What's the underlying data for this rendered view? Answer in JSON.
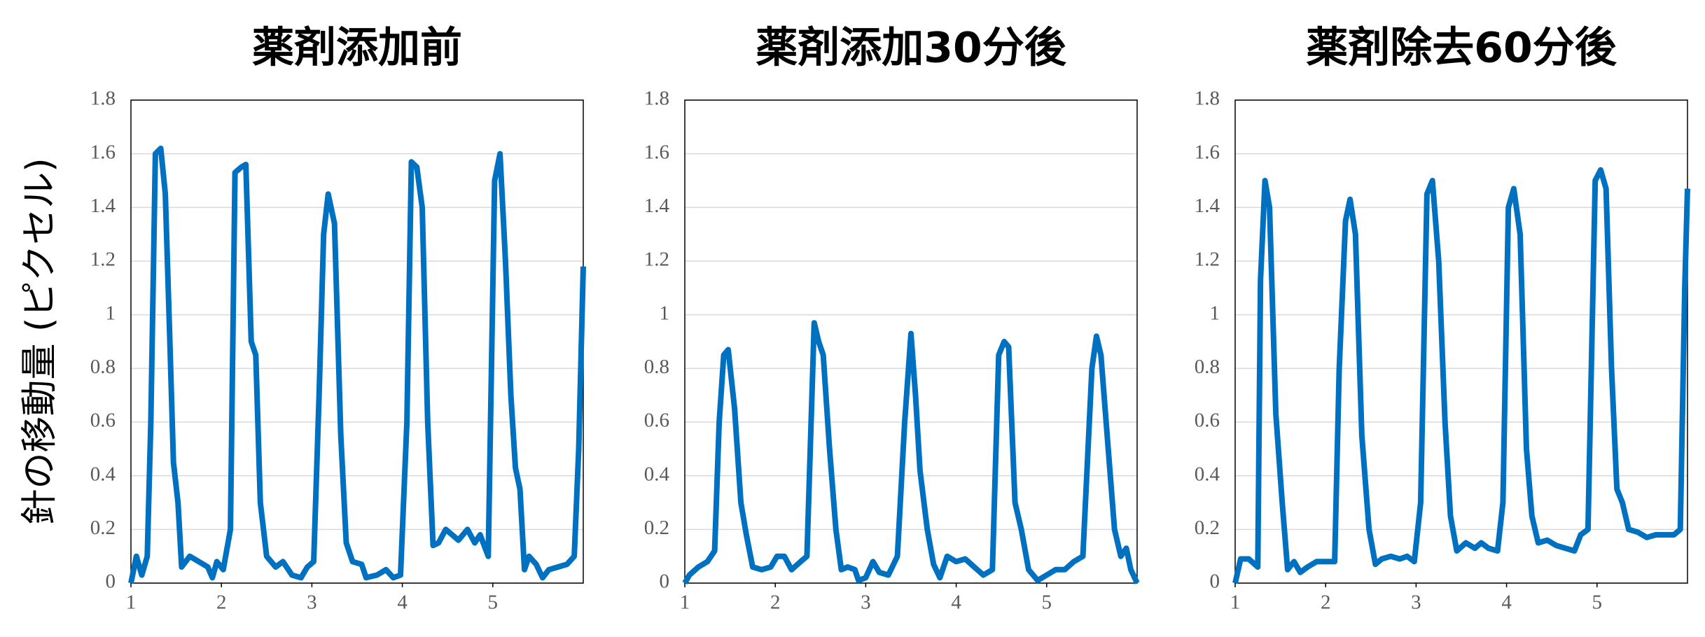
{
  "chart_data": [
    {
      "type": "line",
      "title": "薬剤添加前",
      "ylabel": "針の移動量 (ピクセル)",
      "xlim": [
        1,
        6
      ],
      "xticks": [
        1,
        2,
        3,
        4,
        5
      ],
      "ylim": [
        0,
        1.8
      ],
      "yticks": [
        0,
        0.2,
        0.4,
        0.6,
        0.8,
        1,
        1.2,
        1.4,
        1.6,
        1.8
      ],
      "grid": true,
      "series": [
        {
          "color": "#0070c0",
          "x": [
            1.0,
            1.06,
            1.12,
            1.18,
            1.22,
            1.27,
            1.33,
            1.38,
            1.43,
            1.47,
            1.52,
            1.56,
            1.65,
            1.75,
            1.85,
            1.9,
            1.95,
            2.02,
            2.1,
            2.15,
            2.22,
            2.27,
            2.33,
            2.38,
            2.43,
            2.5,
            2.6,
            2.68,
            2.78,
            2.88,
            2.95,
            3.02,
            3.08,
            3.13,
            3.18,
            3.25,
            3.32,
            3.38,
            3.45,
            3.55,
            3.6,
            3.72,
            3.82,
            3.9,
            3.98,
            4.05,
            4.1,
            4.16,
            4.22,
            4.28,
            4.34,
            4.4,
            4.48,
            4.55,
            4.62,
            4.72,
            4.8,
            4.86,
            4.95,
            5.02,
            5.08,
            5.14,
            5.2,
            5.25,
            5.3,
            5.35,
            5.4,
            5.48,
            5.55,
            5.62,
            5.72,
            5.82,
            5.9,
            5.95,
            6.0
          ],
          "values": [
            0.0,
            0.1,
            0.03,
            0.1,
            0.6,
            1.6,
            1.62,
            1.45,
            0.9,
            0.45,
            0.3,
            0.06,
            0.1,
            0.08,
            0.06,
            0.02,
            0.08,
            0.05,
            0.2,
            1.53,
            1.55,
            1.56,
            0.9,
            0.85,
            0.3,
            0.1,
            0.06,
            0.08,
            0.03,
            0.02,
            0.06,
            0.08,
            0.7,
            1.3,
            1.45,
            1.34,
            0.55,
            0.15,
            0.08,
            0.07,
            0.02,
            0.03,
            0.05,
            0.02,
            0.03,
            0.6,
            1.57,
            1.55,
            1.4,
            0.6,
            0.14,
            0.15,
            0.2,
            0.18,
            0.16,
            0.2,
            0.15,
            0.18,
            0.1,
            1.5,
            1.6,
            1.2,
            0.7,
            0.43,
            0.35,
            0.05,
            0.1,
            0.07,
            0.02,
            0.05,
            0.06,
            0.07,
            0.1,
            0.5,
            1.18
          ]
        }
      ]
    },
    {
      "type": "line",
      "title": "薬剤添加30分後",
      "xlim": [
        1,
        6
      ],
      "xticks": [
        1,
        2,
        3,
        4,
        5
      ],
      "ylim": [
        0,
        1.8
      ],
      "yticks": [
        0,
        0.2,
        0.4,
        0.6,
        0.8,
        1,
        1.2,
        1.4,
        1.6,
        1.8
      ],
      "grid": true,
      "series": [
        {
          "color": "#0070c0",
          "x": [
            1.0,
            1.05,
            1.15,
            1.25,
            1.33,
            1.38,
            1.43,
            1.48,
            1.55,
            1.62,
            1.68,
            1.75,
            1.85,
            1.95,
            2.02,
            2.1,
            2.18,
            2.28,
            2.35,
            2.43,
            2.48,
            2.53,
            2.6,
            2.67,
            2.73,
            2.8,
            2.88,
            2.92,
            3.0,
            3.08,
            3.15,
            3.25,
            3.35,
            3.43,
            3.5,
            3.55,
            3.6,
            3.68,
            3.75,
            3.82,
            3.9,
            4.0,
            4.1,
            4.2,
            4.3,
            4.4,
            4.47,
            4.53,
            4.58,
            4.65,
            4.72,
            4.8,
            4.9,
            5.0,
            5.1,
            5.2,
            5.3,
            5.4,
            5.5,
            5.55,
            5.6,
            5.68,
            5.75,
            5.82,
            5.88,
            5.93,
            6.0
          ],
          "values": [
            0.0,
            0.03,
            0.06,
            0.08,
            0.12,
            0.6,
            0.85,
            0.87,
            0.65,
            0.3,
            0.18,
            0.06,
            0.05,
            0.06,
            0.1,
            0.1,
            0.05,
            0.08,
            0.1,
            0.97,
            0.9,
            0.85,
            0.5,
            0.2,
            0.05,
            0.06,
            0.05,
            0.01,
            0.02,
            0.08,
            0.04,
            0.03,
            0.1,
            0.6,
            0.93,
            0.7,
            0.42,
            0.2,
            0.07,
            0.02,
            0.1,
            0.08,
            0.09,
            0.06,
            0.03,
            0.05,
            0.85,
            0.9,
            0.88,
            0.3,
            0.2,
            0.05,
            0.01,
            0.03,
            0.05,
            0.05,
            0.08,
            0.1,
            0.8,
            0.92,
            0.85,
            0.5,
            0.2,
            0.1,
            0.13,
            0.05,
            0.0
          ]
        }
      ]
    },
    {
      "type": "line",
      "title": "薬剤除去60分後",
      "xlim": [
        1,
        6
      ],
      "xticks": [
        1,
        2,
        3,
        4,
        5
      ],
      "ylim": [
        0,
        1.8
      ],
      "yticks": [
        0,
        0.2,
        0.4,
        0.6,
        0.8,
        1,
        1.2,
        1.4,
        1.6,
        1.8
      ],
      "grid": true,
      "series": [
        {
          "color": "#0070c0",
          "x": [
            1.0,
            1.06,
            1.15,
            1.25,
            1.28,
            1.33,
            1.38,
            1.45,
            1.52,
            1.58,
            1.65,
            1.72,
            1.8,
            1.9,
            2.0,
            2.1,
            2.15,
            2.22,
            2.27,
            2.33,
            2.4,
            2.48,
            2.55,
            2.62,
            2.72,
            2.82,
            2.9,
            2.98,
            3.05,
            3.12,
            3.18,
            3.25,
            3.32,
            3.38,
            3.45,
            3.55,
            3.65,
            3.72,
            3.8,
            3.9,
            3.96,
            4.02,
            4.08,
            4.15,
            4.22,
            4.28,
            4.35,
            4.45,
            4.55,
            4.65,
            4.75,
            4.82,
            4.9,
            4.98,
            5.04,
            5.1,
            5.16,
            5.22,
            5.28,
            5.35,
            5.45,
            5.55,
            5.65,
            5.75,
            5.85,
            5.92,
            5.97,
            6.0
          ],
          "values": [
            0.0,
            0.09,
            0.09,
            0.06,
            1.13,
            1.5,
            1.4,
            0.63,
            0.3,
            0.05,
            0.08,
            0.04,
            0.06,
            0.08,
            0.08,
            0.08,
            0.8,
            1.35,
            1.43,
            1.3,
            0.55,
            0.2,
            0.07,
            0.09,
            0.1,
            0.09,
            0.1,
            0.08,
            0.3,
            1.45,
            1.5,
            1.2,
            0.6,
            0.25,
            0.12,
            0.15,
            0.13,
            0.15,
            0.13,
            0.12,
            0.3,
            1.4,
            1.47,
            1.3,
            0.5,
            0.25,
            0.15,
            0.16,
            0.14,
            0.13,
            0.12,
            0.18,
            0.2,
            1.5,
            1.54,
            1.47,
            0.8,
            0.35,
            0.3,
            0.2,
            0.19,
            0.17,
            0.18,
            0.18,
            0.18,
            0.2,
            1.1,
            1.47
          ]
        }
      ]
    }
  ]
}
